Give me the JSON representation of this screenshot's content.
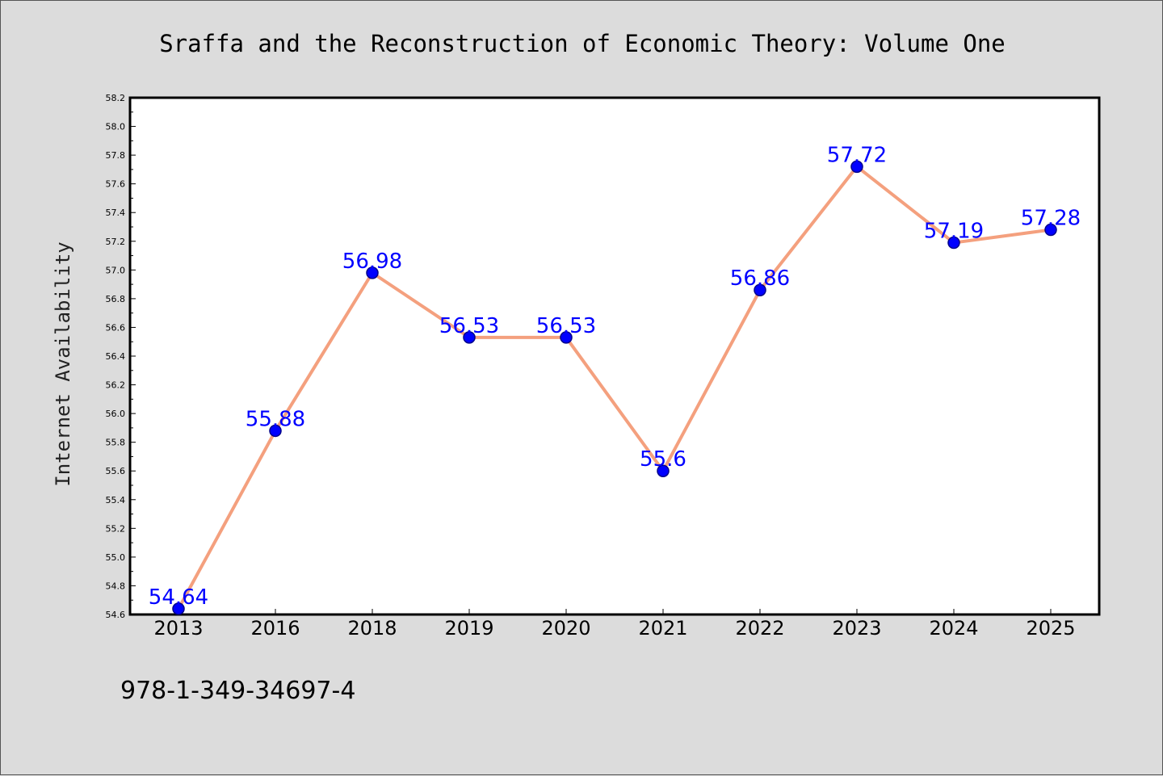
{
  "chart_data": {
    "type": "line",
    "title": "Sraffa and the Reconstruction of Economic Theory: Volume One",
    "xlabel": "",
    "ylabel": "Internet Availability",
    "categories": [
      "2013",
      "2016",
      "2018",
      "2019",
      "2020",
      "2021",
      "2022",
      "2023",
      "2024",
      "2025"
    ],
    "values": [
      54.64,
      55.88,
      56.98,
      56.53,
      56.53,
      55.6,
      56.86,
      57.72,
      57.19,
      57.28
    ],
    "data_labels": [
      "54.64",
      "55.88",
      "56.98",
      "56.53",
      "56.53",
      "55.6",
      "56.86",
      "57.72",
      "57.19",
      "57.28"
    ],
    "ylim": [
      54.6,
      58.2
    ],
    "yticks": [
      "54.6",
      "54.8",
      "55.0",
      "55.2",
      "55.4",
      "55.6",
      "55.8",
      "56.0",
      "56.2",
      "56.4",
      "56.6",
      "56.8",
      "57.0",
      "57.2",
      "57.4",
      "57.6",
      "57.8",
      "58.0",
      "58.2"
    ],
    "grid": false,
    "legend": "none",
    "colors": {
      "line": "#f4a07e",
      "marker": "#0000ff",
      "marker_edge": "#00008b",
      "data_label": "#0000ff",
      "background": "#dcdcdc",
      "plot_background": "#ffffff"
    }
  },
  "footer": {
    "isbn": "978-1-349-34697-4"
  }
}
